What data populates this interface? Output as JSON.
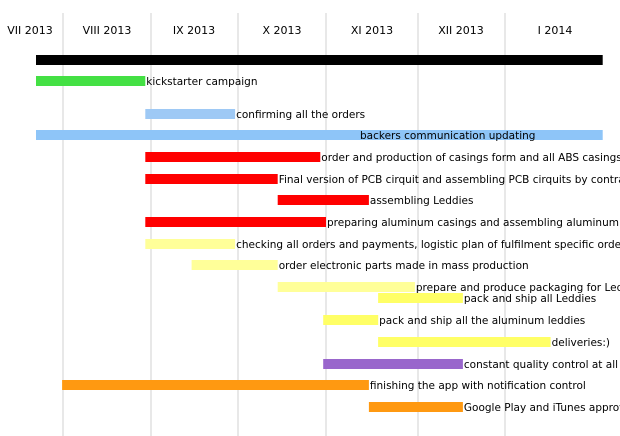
{
  "chart_data": {
    "type": "gantt",
    "title": "",
    "grid": true,
    "months": [
      "VII 2013",
      "VIII 2013",
      "IX 2013",
      "X 2013",
      "XI 2013",
      "XII 2013",
      "I 2014"
    ],
    "axis_range": [
      "2013-07-01",
      "2014-01-31"
    ],
    "tasks": [
      {
        "label": "",
        "start": "2013-07-01",
        "end": "2014-01-31",
        "color": "#000000"
      },
      {
        "label": "kickstarter campaign",
        "start": "2013-07-01",
        "end": "2013-08-30",
        "color": "#44e044"
      },
      {
        "label": "confirming all the orders",
        "start": "2013-08-30",
        "end": "2013-09-30",
        "color": "#9ec9f5"
      },
      {
        "label": "backers communication updating",
        "start": "2013-07-01",
        "end": "2014-01-31",
        "color": "#8ec5f8"
      },
      {
        "label": "order and production of casings form and all ABS casings by contractor",
        "start": "2013-08-30",
        "end": "2013-10-30",
        "color": "#ff0000"
      },
      {
        "label": "Final version of PCB cirquit and assembling PCB cirquits by contractor",
        "start": "2013-08-30",
        "end": "2013-10-15",
        "color": "#ff0000"
      },
      {
        "label": "assembling  Leddies",
        "start": "2013-10-15",
        "end": "2013-11-15",
        "color": "#ff0000"
      },
      {
        "label": "preparing aluminum casings and assembling aluminum Leddies",
        "start": "2013-08-30",
        "end": "2013-11-01",
        "color": "#ff0000"
      },
      {
        "label": "checking all orders and payments, logistic plan of fulfilment specific orders",
        "start": "2013-08-30",
        "end": "2013-09-30",
        "color": "#ffff99"
      },
      {
        "label": "order electronic parts made in mass production",
        "start": "2013-09-15",
        "end": "2013-10-15",
        "color": "#ffff99"
      },
      {
        "label": "prepare and produce packaging for Leddie",
        "start": "2013-10-15",
        "end": "2013-11-30",
        "color": "#ffff99"
      },
      {
        "label": "pack and ship all Leddies",
        "start": "2013-11-18",
        "end": "2013-12-17",
        "color": "#ffff66"
      },
      {
        "label": "pack and ship all the aluminum leddies",
        "start": "2013-10-31",
        "end": "2013-11-18",
        "color": "#ffff66"
      },
      {
        "label": "deliveries:)",
        "start": "2013-11-18",
        "end": "2014-01-15",
        "color": "#ffff66"
      },
      {
        "label": "constant quality control at all stages",
        "start": "2013-10-31",
        "end": "2013-12-17",
        "color": "#9966cc"
      },
      {
        "label": "finishing the app with notification control",
        "start": "2013-07-31",
        "end": "2013-11-15",
        "color": "#ff9911"
      },
      {
        "label": "Google Play and iTunes approval process",
        "start": "2013-11-15",
        "end": "2013-12-17",
        "color": "#ff9911"
      }
    ]
  }
}
